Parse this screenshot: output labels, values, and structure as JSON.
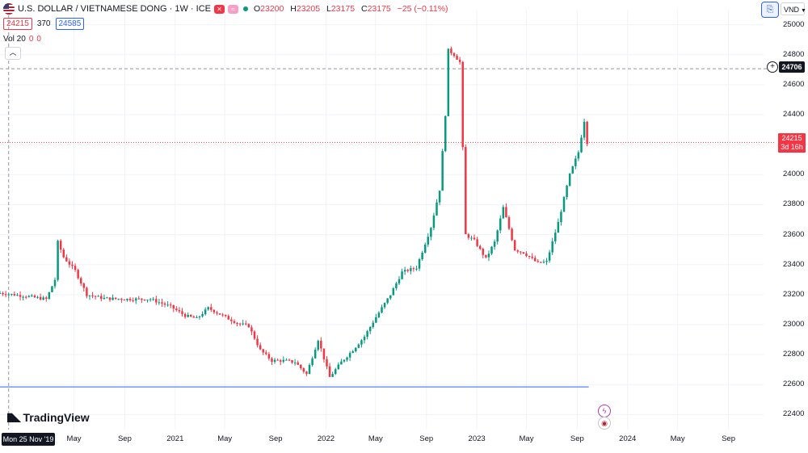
{
  "header": {
    "title": "U.S. DOLLAR / VIETNAMESE DONG · 1W · ICE",
    "flag_icon": "us-flag-icon",
    "market_status_icon": "green-dot-icon",
    "ohlc": {
      "open_label": "O",
      "open": "23200",
      "high_label": "H",
      "high": "23205",
      "low_label": "L",
      "low": "23175",
      "close_label": "C",
      "close": "23175",
      "change": "−25 (−0.11%)"
    }
  },
  "bid_ask": {
    "bid": "24215",
    "spread": "370",
    "ask": "24585"
  },
  "volume": {
    "label": "Vol 20",
    "v1": "0",
    "v2": "0"
  },
  "controls": {
    "currency": "VND",
    "collapse_icon": "chevron-up-icon",
    "compare_icon": "compare-icon"
  },
  "price_axis": {
    "ticks": [
      "25000",
      "24800",
      "24600",
      "24400",
      "24200",
      "24000",
      "23800",
      "23600",
      "23400",
      "23200",
      "23000",
      "22800",
      "22600",
      "22400"
    ],
    "last_price": "24215",
    "last_price_timer": "3d 16h",
    "crosshair_price": "24706"
  },
  "time_axis": {
    "ticks": [
      {
        "label": "May",
        "date": "2020-05"
      },
      {
        "label": "Sep",
        "date": "2020-09"
      },
      {
        "label": "2021",
        "date": "2021-01"
      },
      {
        "label": "May",
        "date": "2021-05"
      },
      {
        "label": "Sep",
        "date": "2021-09"
      },
      {
        "label": "2022",
        "date": "2022-01"
      },
      {
        "label": "May",
        "date": "2022-05"
      },
      {
        "label": "Sep",
        "date": "2022-09"
      },
      {
        "label": "2023",
        "date": "2023-01"
      },
      {
        "label": "May",
        "date": "2023-05"
      },
      {
        "label": "Sep",
        "date": "2023-09"
      },
      {
        "label": "2024",
        "date": "2024-01"
      },
      {
        "label": "May",
        "date": "2024-05"
      },
      {
        "label": "Sep",
        "date": "2024-09"
      }
    ],
    "crosshair_date": "Mon 25 Nov '19"
  },
  "branding": {
    "logo_text": "TradingView",
    "logo_icon": "tradingview-logo-icon"
  },
  "events": {
    "dividend_icon": "lightning-icon",
    "news_icon": "us-flag-event-icon"
  },
  "colors": {
    "up": "#089981",
    "down": "#f23645",
    "support_line": "#2962ff",
    "grid": "#f0f3fa"
  },
  "chart_data": {
    "type": "candlestick",
    "interval": "1W",
    "ylim": [
      22300,
      25100
    ],
    "xlim": [
      "2019-11-04",
      "2024-11-25"
    ],
    "support_level": 22585,
    "crosshair": {
      "price": 24706,
      "date": "2019-11-25"
    },
    "last_price": 24215,
    "anchors": [
      [
        "2019-11-04",
        23210
      ],
      [
        "2020-01-06",
        23190
      ],
      [
        "2020-02-24",
        23170
      ],
      [
        "2020-03-16",
        23300
      ],
      [
        "2020-03-23",
        23550
      ],
      [
        "2020-04-06",
        23450
      ],
      [
        "2020-05-04",
        23360
      ],
      [
        "2020-06-01",
        23200
      ],
      [
        "2020-07-13",
        23175
      ],
      [
        "2020-09-07",
        23170
      ],
      [
        "2020-11-02",
        23170
      ],
      [
        "2020-12-21",
        23120
      ],
      [
        "2021-01-25",
        23060
      ],
      [
        "2021-02-22",
        23040
      ],
      [
        "2021-03-22",
        23110
      ],
      [
        "2021-04-26",
        23060
      ],
      [
        "2021-05-31",
        23010
      ],
      [
        "2021-06-28",
        22990
      ],
      [
        "2021-07-26",
        22830
      ],
      [
        "2021-08-23",
        22760
      ],
      [
        "2021-09-20",
        22760
      ],
      [
        "2021-10-18",
        22750
      ],
      [
        "2021-11-15",
        22670
      ],
      [
        "2021-12-13",
        22900
      ],
      [
        "2022-01-10",
        22650
      ],
      [
        "2022-02-07",
        22750
      ],
      [
        "2022-03-07",
        22830
      ],
      [
        "2022-04-04",
        22920
      ],
      [
        "2022-05-02",
        23050
      ],
      [
        "2022-06-06",
        23200
      ],
      [
        "2022-07-04",
        23350
      ],
      [
        "2022-08-08",
        23380
      ],
      [
        "2022-09-12",
        23650
      ],
      [
        "2022-10-03",
        23900
      ],
      [
        "2022-10-17",
        24400
      ],
      [
        "2022-10-24",
        24830
      ],
      [
        "2022-11-07",
        24800
      ],
      [
        "2022-11-21",
        24750
      ],
      [
        "2022-12-05",
        23600
      ],
      [
        "2022-12-26",
        23560
      ],
      [
        "2023-01-23",
        23440
      ],
      [
        "2023-02-13",
        23550
      ],
      [
        "2023-03-06",
        23780
      ],
      [
        "2023-04-03",
        23500
      ],
      [
        "2023-04-24",
        23480
      ],
      [
        "2023-05-29",
        23410
      ],
      [
        "2023-06-19",
        23420
      ],
      [
        "2023-07-17",
        23680
      ],
      [
        "2023-08-14",
        24000
      ],
      [
        "2023-09-04",
        24150
      ],
      [
        "2023-09-18",
        24360
      ],
      [
        "2023-09-25",
        24215
      ]
    ]
  }
}
